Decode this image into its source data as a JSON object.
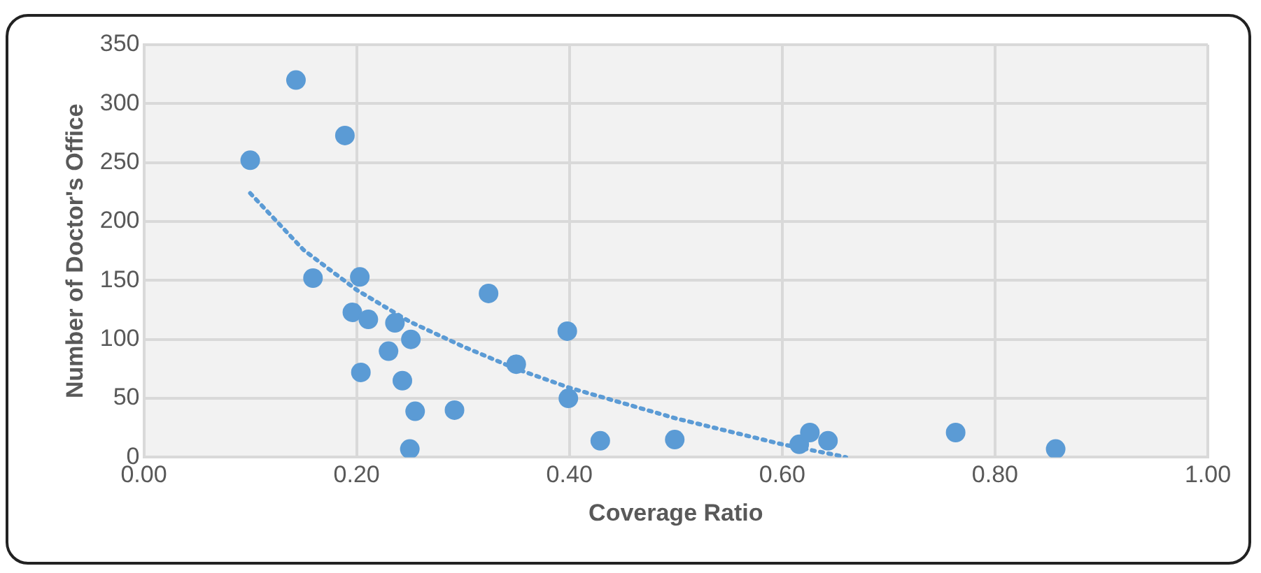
{
  "chart_data": {
    "type": "scatter",
    "xlabel": "Coverage Ratio",
    "ylabel": "Number of Doctor's Office",
    "xlim": [
      0,
      1
    ],
    "xticks": [
      {
        "value": 0,
        "label": "0.00"
      },
      {
        "value": 0.2,
        "label": "0.20"
      },
      {
        "value": 0.4,
        "label": "0.40"
      },
      {
        "value": 0.6,
        "label": "0.60"
      },
      {
        "value": 0.8,
        "label": "0.80"
      },
      {
        "value": 1,
        "label": "1.00"
      }
    ],
    "ylim": [
      0,
      350
    ],
    "yticks": [
      0,
      50,
      100,
      150,
      200,
      250,
      300,
      350
    ],
    "grid": true,
    "legend": false,
    "series": [
      {
        "marker": "circle",
        "color": "#5b9bd5",
        "x": [
          0.1,
          0.143,
          0.189,
          0.159,
          0.203,
          0.196,
          0.211,
          0.236,
          0.251,
          0.23,
          0.204,
          0.243,
          0.255,
          0.25,
          0.292,
          0.324,
          0.35,
          0.398,
          0.399,
          0.429,
          0.499,
          0.616,
          0.626,
          0.643,
          0.763,
          0.857
        ],
        "values": [
          252,
          320,
          273,
          152,
          153,
          123,
          117,
          114,
          100,
          90,
          72,
          65,
          39,
          7,
          40,
          139,
          79,
          107,
          50,
          14,
          15,
          11,
          21,
          14,
          21,
          7
        ]
      },
      {
        "type": "line",
        "color": "#5b9bd5",
        "line_style": "dotted",
        "x": [
          0.1,
          0.15,
          0.2,
          0.25,
          0.3,
          0.35,
          0.4,
          0.45,
          0.5,
          0.55,
          0.6,
          0.65,
          0.66
        ],
        "values": [
          224,
          176,
          142,
          115,
          94,
          75,
          59,
          46,
          33,
          22,
          11,
          2,
          0
        ]
      }
    ]
  }
}
